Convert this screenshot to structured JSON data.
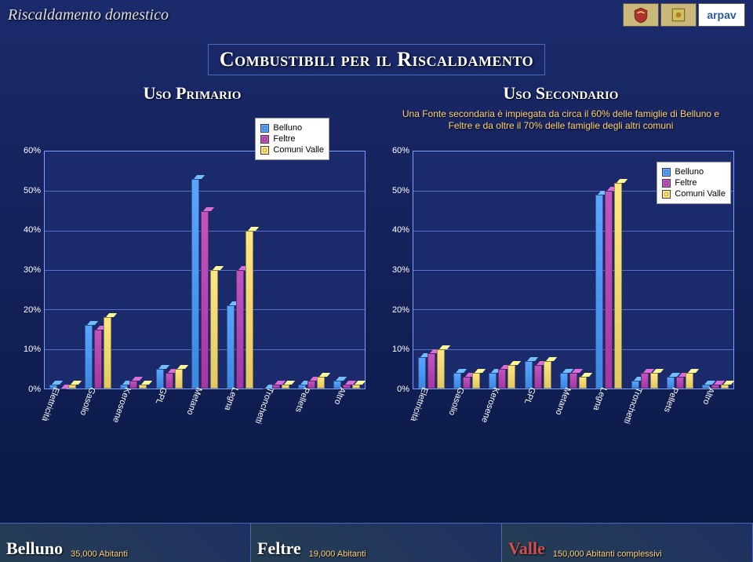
{
  "header": {
    "breadcrumb": "Riscaldamento domestico",
    "logo_arpav": "arpav"
  },
  "title": "Combustibili per il Riscaldamento",
  "charts": {
    "primary": {
      "title": "Uso Primario",
      "description": "",
      "ylim": [
        0,
        60
      ],
      "ytick_step": 10,
      "categories": [
        "Elettricità",
        "Gasolio",
        "Kerosene",
        "GPL",
        "Metano",
        "Legna",
        "Tronchetti",
        "Pellets",
        "Altro"
      ],
      "series": [
        {
          "name": "Belluno",
          "color": "#5aa5ff",
          "values": [
            1,
            16,
            1,
            5,
            53,
            21,
            0,
            1,
            2
          ]
        },
        {
          "name": "Feltre",
          "color": "#c055c0",
          "values": [
            0,
            15,
            2,
            4,
            45,
            30,
            1,
            2,
            1
          ]
        },
        {
          "name": "Comuni Valle",
          "color": "#ffe680",
          "values": [
            1,
            18,
            1,
            5,
            30,
            40,
            1,
            3,
            1
          ]
        }
      ]
    },
    "secondary": {
      "title": "Uso Secondario",
      "description": "Una Fonte secondaria è impiegata da circa il 60% delle famiglie di Belluno e Feltre e da oltre il 70% delle famiglie degli altri comuni",
      "ylim": [
        0,
        60
      ],
      "ytick_step": 10,
      "categories": [
        "Elettricità",
        "Gasolio",
        "Kerosene",
        "GPL",
        "Metano",
        "Legna",
        "Tronchetti",
        "Pellets",
        "Altro"
      ],
      "series": [
        {
          "name": "Belluno",
          "color": "#5aa5ff",
          "values": [
            8,
            4,
            4,
            7,
            4,
            49,
            2,
            3,
            1
          ]
        },
        {
          "name": "Feltre",
          "color": "#c055c0",
          "values": [
            9,
            3,
            5,
            6,
            4,
            50,
            4,
            3,
            1
          ]
        },
        {
          "name": "Comuni Valle",
          "color": "#ffe680",
          "values": [
            10,
            4,
            6,
            7,
            3,
            52,
            4,
            4,
            1
          ]
        }
      ]
    }
  },
  "footer": {
    "belluno": {
      "name": "Belluno",
      "pop": "35,000 Abitanti"
    },
    "feltre": {
      "name": "Feltre",
      "pop": "19,000 Abitanti"
    },
    "valle": {
      "name": "Valle",
      "pop": "150,000 Abitanti complessivi"
    }
  },
  "style": {
    "grid_color": "#7ea0ff",
    "plot_bg": "#1b2a6b",
    "desc_color": "#ffd27a"
  }
}
